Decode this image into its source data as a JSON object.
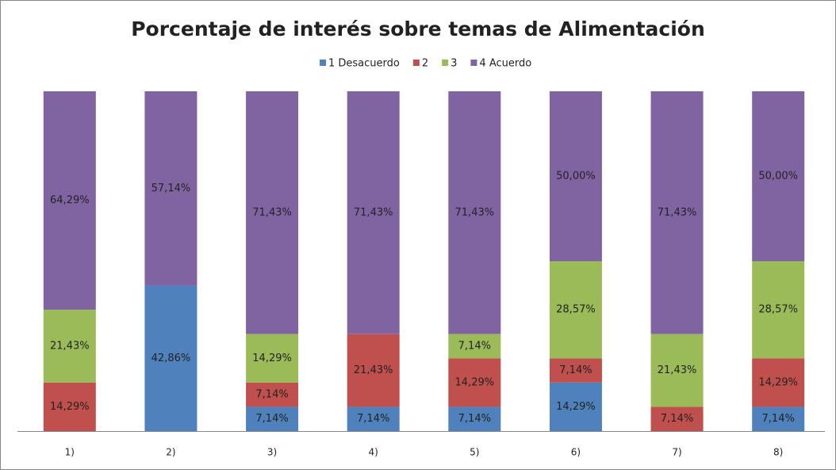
{
  "chart_data": {
    "type": "stacked_bar_100",
    "title": "Porcentaje de interés sobre temas de Alimentación",
    "categories": [
      "1)",
      "2)",
      "3)",
      "4)",
      "5)",
      "6)",
      "7)",
      "8)"
    ],
    "ylim": [
      0,
      100
    ],
    "legend": "top",
    "series": [
      {
        "name": "1 Desacuerdo",
        "color": "#4f81bd",
        "values": [
          null,
          42.86,
          7.14,
          7.14,
          7.14,
          14.29,
          null,
          7.14
        ],
        "value_labels": [
          null,
          "42,86%",
          "7,14%",
          "7,14%",
          "7,14%",
          "14,29%",
          null,
          "7,14%"
        ]
      },
      {
        "name": "2",
        "color": "#c0504d",
        "values": [
          14.29,
          null,
          7.14,
          21.43,
          14.29,
          7.14,
          7.14,
          14.29
        ],
        "value_labels": [
          "14,29%",
          null,
          "7,14%",
          "21,43%",
          "14,29%",
          "7,14%",
          "7,14%",
          "14,29%"
        ]
      },
      {
        "name": "3",
        "color": "#9bbb59",
        "values": [
          21.43,
          null,
          14.29,
          null,
          7.14,
          28.57,
          21.43,
          28.57
        ],
        "value_labels": [
          "21,43%",
          null,
          "14,29%",
          null,
          "7,14%",
          "28,57%",
          "21,43%",
          "28,57%"
        ]
      },
      {
        "name": "4 Acuerdo",
        "color": "#8064a2",
        "values": [
          64.29,
          57.14,
          71.43,
          71.43,
          71.43,
          50.0,
          71.43,
          50.0
        ],
        "value_labels": [
          "64,29%",
          "57,14%",
          "71,43%",
          "71,43%",
          "71,43%",
          "50,00%",
          "71,43%",
          "50,00%"
        ]
      }
    ]
  }
}
